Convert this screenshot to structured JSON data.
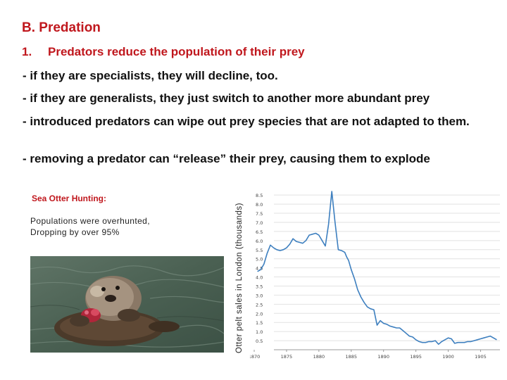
{
  "slide": {
    "heading": "B. Predation",
    "point_number": "1.",
    "point_text": "Predators reduce the population of their prey",
    "bullets": [
      "- if they are specialists, they will decline, too.",
      "- if they are generalists, they just switch to another more abundant prey",
      "- introduced predators can wipe out prey species that are not adapted to them.",
      "- removing a predator can “release” their prey, causing them to explode"
    ]
  },
  "otter": {
    "title": "Sea Otter Hunting:",
    "desc_line1": "Populations were overhunted,",
    "desc_line2": "Dropping by over 95%",
    "photo_icon": "sea-otter-eating-photo"
  },
  "colors": {
    "heading": "#c0171d",
    "line": "#3d7fbf",
    "grid": "#e2e2e2"
  },
  "chart_data": {
    "type": "line",
    "title": "",
    "xlabel": "",
    "ylabel": "Otter pelt sales in London (thousands)",
    "xlim": [
      1870,
      1908
    ],
    "ylim": [
      0,
      8.7
    ],
    "xticks": [
      1870,
      1875,
      1880,
      1885,
      1890,
      1895,
      1900,
      1905
    ],
    "xtick_labels": [
      "1870",
      "1875",
      "1880",
      "1885",
      "1890",
      "1895",
      "1900",
      "1905"
    ],
    "yticks": [
      0.5,
      1.0,
      1.5,
      2.0,
      2.5,
      3.0,
      3.5,
      4.0,
      4.5,
      5.0,
      5.5,
      6.0,
      6.5,
      7.0,
      7.5,
      8.0,
      8.5
    ],
    "ytick_labels": [
      "0.5",
      "1.0",
      "1.5",
      "2.0",
      "2.5",
      "3.0",
      "3.5",
      "4.0",
      "4.5",
      "5.0",
      "5.5",
      "6.0",
      "6.5",
      "7.0",
      "7.5",
      "8.0",
      "8.5"
    ],
    "grid": "horizontal",
    "series": [
      {
        "x": [
          1870.5,
          1871,
          1871.5,
          1872,
          1872.5,
          1873,
          1873.5,
          1874,
          1874.5,
          1875,
          1875.5,
          1876,
          1876.5,
          1877,
          1877.5,
          1878,
          1878.5,
          1879,
          1879.5,
          1880,
          1880.5,
          1881,
          1881.5,
          1882,
          1882.5,
          1883,
          1883.5,
          1884,
          1884.3,
          1884.6,
          1885,
          1885.5,
          1886,
          1886.5,
          1887,
          1887.5,
          1888,
          1888.5,
          1889,
          1889.5,
          1890,
          1890.5,
          1891,
          1891.5,
          1892,
          1892.5,
          1893,
          1893.5,
          1894,
          1894.5,
          1895,
          1895.5,
          1896,
          1896.5,
          1897,
          1897.5,
          1898,
          1898.5,
          1899,
          1899.5,
          1900,
          1900.5,
          1901,
          1901.5,
          1902,
          1902.5,
          1903,
          1903.5,
          1904,
          1904.5,
          1905,
          1905.5,
          1906,
          1906.5,
          1907,
          1907.5
        ],
        "y": [
          4.3,
          4.4,
          4.7,
          5.3,
          5.75,
          5.6,
          5.5,
          5.45,
          5.5,
          5.6,
          5.8,
          6.1,
          5.95,
          5.9,
          5.85,
          6.0,
          6.3,
          6.35,
          6.4,
          6.3,
          6.0,
          5.7,
          6.9,
          8.7,
          7.0,
          5.5,
          5.45,
          5.35,
          5.1,
          4.9,
          4.4,
          3.9,
          3.3,
          2.9,
          2.6,
          2.35,
          2.25,
          2.2,
          1.35,
          1.6,
          1.45,
          1.4,
          1.3,
          1.25,
          1.2,
          1.2,
          1.05,
          0.9,
          0.75,
          0.7,
          0.55,
          0.45,
          0.4,
          0.4,
          0.45,
          0.45,
          0.5,
          0.3,
          0.45,
          0.55,
          0.65,
          0.6,
          0.35,
          0.4,
          0.4,
          0.4,
          0.45,
          0.45,
          0.5,
          0.55,
          0.6,
          0.65,
          0.7,
          0.75,
          0.65,
          0.55
        ]
      }
    ]
  }
}
